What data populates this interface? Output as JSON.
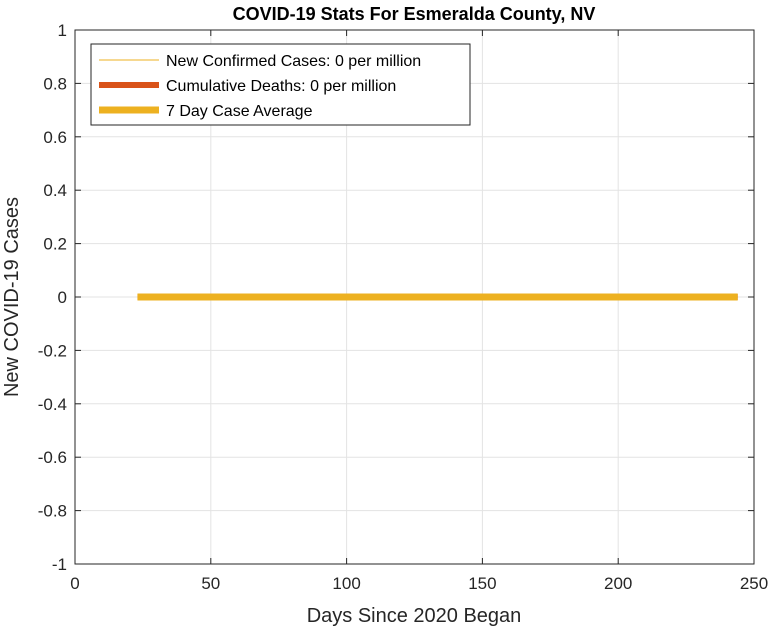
{
  "chart_data": {
    "type": "line",
    "title": "COVID-19 Stats For Esmeralda County, NV",
    "xlabel": "Days Since 2020 Began",
    "ylabel": "New COVID-19 Cases",
    "xlim": [
      0,
      250
    ],
    "ylim": [
      -1,
      1
    ],
    "xticks": [
      0,
      50,
      100,
      150,
      200,
      250
    ],
    "yticks": [
      -1,
      -0.8,
      -0.6,
      -0.4,
      -0.2,
      0,
      0.2,
      0.4,
      0.6,
      0.8,
      1
    ],
    "grid": true,
    "legend_position": "top-left",
    "series": [
      {
        "name": "New Confirmed Cases: 0 per million",
        "color": "#EDB120",
        "x": [
          23,
          244
        ],
        "y": [
          0,
          0
        ]
      },
      {
        "name": "Cumulative Deaths: 0 per million",
        "color": "#D95319",
        "x": [
          23,
          244
        ],
        "y": [
          0,
          0
        ]
      },
      {
        "name": "7 Day Case Average",
        "color": "#EDB120",
        "x": [
          23,
          244
        ],
        "y": [
          0,
          0
        ]
      }
    ]
  }
}
